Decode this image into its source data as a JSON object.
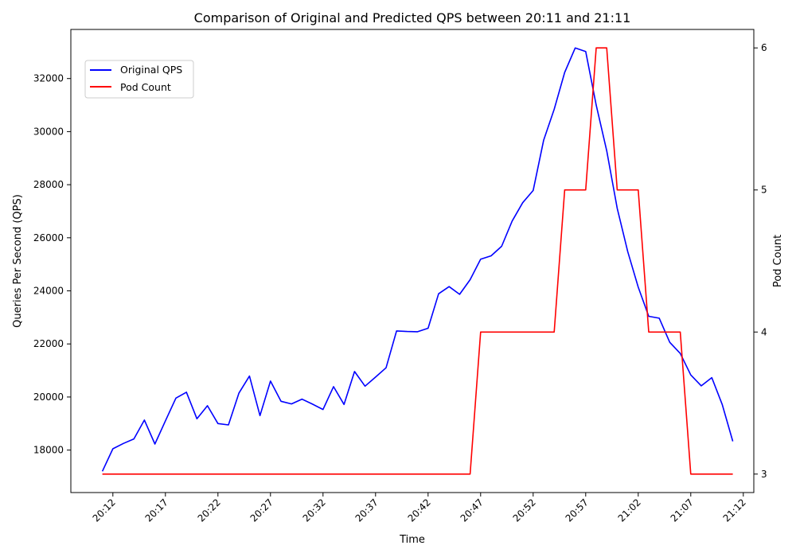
{
  "chart_data": {
    "type": "line",
    "title": "Comparison of Original and Predicted QPS between 20:11 and 21:11",
    "xlabel": "Time",
    "ylabel_left": "Queries Per Second (QPS)",
    "ylabel_right": "Pod Count",
    "x_ticks": [
      "20:12",
      "20:17",
      "20:22",
      "20:27",
      "20:32",
      "20:37",
      "20:42",
      "20:47",
      "20:52",
      "20:57",
      "21:02",
      "21:07",
      "21:12"
    ],
    "x_range_minutes": [
      -3,
      62
    ],
    "y_left_ticks": [
      18000,
      20000,
      22000,
      24000,
      26000,
      28000,
      30000,
      32000
    ],
    "y_left_range": [
      16400,
      33850
    ],
    "y_right_ticks": [
      3,
      4,
      5,
      6
    ],
    "y_right_range": [
      2.87,
      6.13
    ],
    "legend": {
      "position": "top-left",
      "entries": [
        "Original QPS",
        "Pod Count"
      ]
    },
    "colors": {
      "qps": "#0000ff",
      "pods": "#ff0000"
    },
    "x_minutes": [
      0,
      1,
      2,
      3,
      4,
      5,
      6,
      7,
      8,
      9,
      10,
      11,
      12,
      13,
      14,
      15,
      16,
      17,
      18,
      19,
      20,
      21,
      22,
      23,
      24,
      25,
      26,
      27,
      28,
      29,
      30,
      31,
      32,
      33,
      34,
      35,
      36,
      37,
      38,
      39,
      40,
      41,
      42,
      43,
      44,
      45,
      46,
      47,
      48,
      49,
      50,
      51,
      52,
      53,
      54,
      55,
      56,
      57,
      58,
      59,
      60
    ],
    "series": [
      {
        "name": "Original QPS",
        "axis": "left",
        "values": [
          17200,
          18050,
          18250,
          18420,
          19130,
          18230,
          19100,
          19960,
          20180,
          19180,
          19670,
          19000,
          18950,
          20150,
          20790,
          19300,
          20600,
          19840,
          19740,
          19920,
          19730,
          19530,
          20390,
          19720,
          20960,
          20410,
          20750,
          21100,
          22490,
          22470,
          22460,
          22590,
          23890,
          24160,
          23870,
          24420,
          25190,
          25320,
          25680,
          26630,
          27320,
          27780,
          29680,
          30840,
          32230,
          33150,
          33020,
          31000,
          29280,
          27110,
          25480,
          24140,
          23040,
          22970,
          22060,
          21640,
          20830,
          20420,
          20730,
          19710,
          18330
        ]
      },
      {
        "name": "Pod Count",
        "axis": "right",
        "values": [
          3,
          3,
          3,
          3,
          3,
          3,
          3,
          3,
          3,
          3,
          3,
          3,
          3,
          3,
          3,
          3,
          3,
          3,
          3,
          3,
          3,
          3,
          3,
          3,
          3,
          3,
          3,
          3,
          3,
          3,
          3,
          3,
          3,
          3,
          3,
          3,
          4,
          4,
          4,
          4,
          4,
          4,
          4,
          4,
          5,
          5,
          5,
          6,
          6,
          5,
          5,
          5,
          4,
          4,
          4,
          4,
          3,
          3,
          3,
          3,
          3
        ]
      }
    ]
  }
}
